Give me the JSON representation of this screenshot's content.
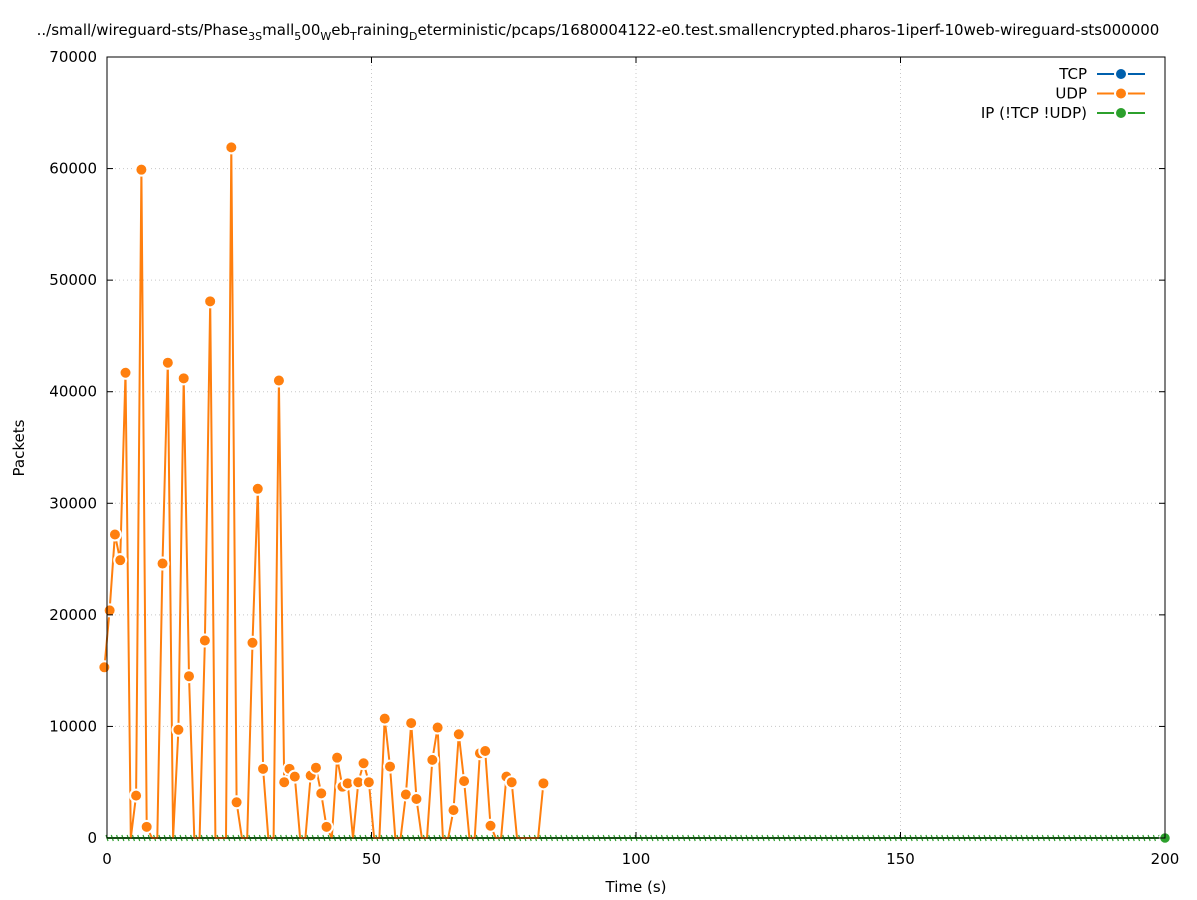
{
  "chart_data": {
    "type": "line",
    "title_parts": [
      {
        "text": "../small/wireguard-sts/Phase"
      },
      {
        "text": "3S",
        "sub": true
      },
      {
        "text": "mall"
      },
      {
        "text": "5",
        "sub": true
      },
      {
        "text": "00"
      },
      {
        "text": "W",
        "sub": true
      },
      {
        "text": "eb"
      },
      {
        "text": "T",
        "sub": true
      },
      {
        "text": "raining"
      },
      {
        "text": "D",
        "sub": true
      },
      {
        "text": "eterministic/pcaps/1680004122-e0.test.smallencrypted.pharos-1iperf-10web-wireguard-sts000000"
      }
    ],
    "xlabel": "Time (s)",
    "ylabel": "Packets",
    "xlim": [
      0,
      200
    ],
    "ylim": [
      0,
      70000
    ],
    "xticks": [
      0,
      50,
      100,
      150,
      200
    ],
    "yticks": [
      0,
      10000,
      20000,
      30000,
      40000,
      50000,
      60000,
      70000
    ],
    "grid": true,
    "legend_position": "top-right",
    "series": [
      {
        "name": "TCP",
        "color": "#0060ad",
        "x": [],
        "y": []
      },
      {
        "name": "UDP",
        "color": "#ff7f0e",
        "x": [
          -0.5,
          0.5,
          1.5,
          2.5,
          3.5,
          4.5,
          5.5,
          6.5,
          7.5,
          8.5,
          9.5,
          10.5,
          11.5,
          12.5,
          13.5,
          14.5,
          15.5,
          16.5,
          17.5,
          18.5,
          19.5,
          20.5,
          21.5,
          22.5,
          23.5,
          24.5,
          25.5,
          26.5,
          27.5,
          28.5,
          29.5,
          30.5,
          31.5,
          32.5,
          33.5,
          34.5,
          35.5,
          36.5,
          37.5,
          38.5,
          39.5,
          40.5,
          41.5,
          42.5,
          43.5,
          44.5,
          45.5,
          46.5,
          47.5,
          48.5,
          49.5,
          50.5,
          51.5,
          52.5,
          53.5,
          54.5,
          55.5,
          56.5,
          57.5,
          58.5,
          59.5,
          60.5,
          61.5,
          62.5,
          63.5,
          64.5,
          65.5,
          66.5,
          67.5,
          68.5,
          69.5,
          70.5,
          71.5,
          72.5,
          73.5,
          74.5,
          75.5,
          76.5,
          77.5,
          78.5,
          79.5,
          80.5,
          81.5,
          82.5
        ],
        "y": [
          15300,
          20400,
          27200,
          24900,
          41700,
          0,
          3800,
          59900,
          1000,
          0,
          0,
          24600,
          42600,
          0,
          9700,
          41200,
          14500,
          0,
          0,
          17700,
          48100,
          0,
          0,
          0,
          61900,
          3200,
          0,
          0,
          17500,
          31300,
          6200,
          0,
          0,
          41000,
          5000,
          6200,
          5500,
          0,
          0,
          5600,
          6300,
          4000,
          1000,
          0,
          7200,
          4600,
          4900,
          0,
          5000,
          6700,
          5000,
          0,
          0,
          10700,
          6400,
          0,
          0,
          3900,
          10300,
          3500,
          0,
          0,
          7000,
          9900,
          0,
          0,
          2500,
          9300,
          5100,
          0,
          0,
          7600,
          7800,
          1100,
          0,
          0,
          5500,
          5000,
          0,
          0,
          0,
          0,
          0,
          4900
        ]
      },
      {
        "name": "IP (!TCP  !UDP)",
        "color": "#2ca02c",
        "x": [
          0,
          200
        ],
        "y": [
          0,
          0
        ]
      }
    ]
  }
}
